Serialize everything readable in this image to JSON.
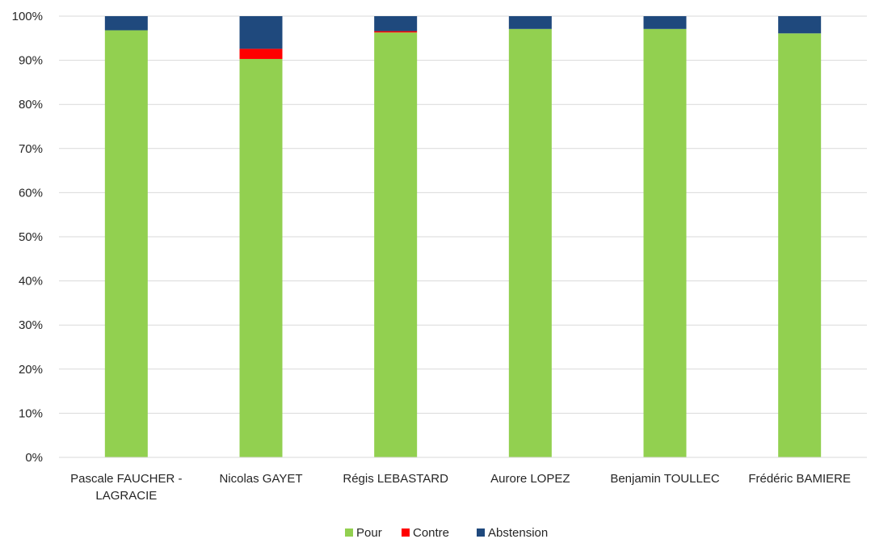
{
  "chart_data": {
    "type": "bar",
    "stacked": true,
    "normalized_percent": true,
    "categories": [
      [
        "Pascale FAUCHER -",
        "LAGRACIE"
      ],
      [
        "Nicolas GAYET"
      ],
      [
        "Régis LEBASTARD"
      ],
      [
        "Aurore LOPEZ"
      ],
      [
        "Benjamin TOULLEC"
      ],
      [
        "Frédéric BAMIERE"
      ]
    ],
    "series": [
      {
        "name": "Pour",
        "color": "#92d050",
        "values": [
          96.8,
          90.3,
          96.3,
          97.1,
          97.1,
          96.1
        ]
      },
      {
        "name": "Contre",
        "color": "#ff0000",
        "values": [
          0.0,
          2.3,
          0.3,
          0.0,
          0.0,
          0.0
        ]
      },
      {
        "name": "Abstension",
        "color": "#1f497d",
        "values": [
          3.2,
          7.4,
          3.4,
          2.9,
          2.9,
          3.9
        ]
      }
    ],
    "ylim": [
      0,
      100
    ],
    "yticks": [
      "0%",
      "10%",
      "20%",
      "30%",
      "40%",
      "50%",
      "60%",
      "70%",
      "80%",
      "90%",
      "100%"
    ],
    "grid": true,
    "legend_position": "bottom"
  }
}
